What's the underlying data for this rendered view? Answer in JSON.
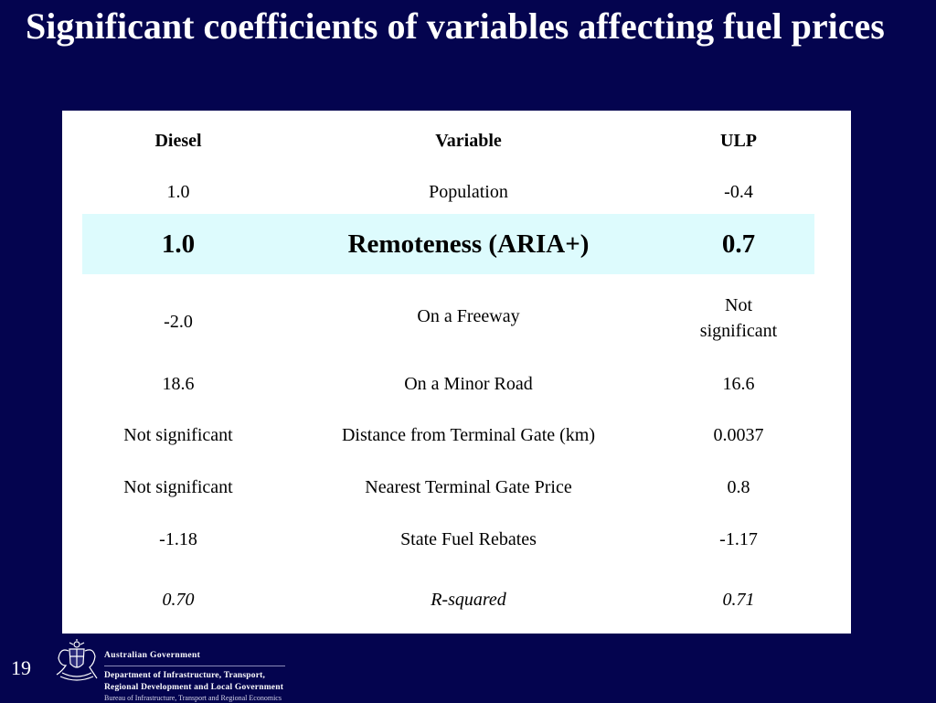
{
  "slide": {
    "title": "Significant coefficients of variables affecting fuel prices",
    "page_number": "19"
  },
  "table": {
    "headers": {
      "diesel": "Diesel",
      "variable": "Variable",
      "ulp": "ULP"
    },
    "rows": [
      {
        "diesel": "1.0",
        "variable": "Population",
        "ulp": "-0.4"
      },
      {
        "diesel": "1.0",
        "variable": "Remoteness (ARIA+)",
        "ulp": "0.7"
      },
      {
        "diesel": "-2.0",
        "variable": "On a Freeway",
        "ulp": "Not significant"
      },
      {
        "diesel": "18.6",
        "variable": "On a Minor Road",
        "ulp": "16.6"
      },
      {
        "diesel": "Not significant",
        "variable": "Distance from Terminal Gate (km)",
        "ulp": "0.0037"
      },
      {
        "diesel": "Not significant",
        "variable": "Nearest Terminal Gate Price",
        "ulp": "0.8"
      },
      {
        "diesel": "-1.18",
        "variable": "State Fuel Rebates",
        "ulp": "-1.17"
      },
      {
        "diesel": "0.70",
        "variable": "R-squared",
        "ulp": "0.71"
      }
    ],
    "highlight_color": "#ddfbfd"
  },
  "footer": {
    "crest_icon": "coat-of-arms-icon",
    "gov_name": "Australian Government",
    "department_line1": "Department of Infrastructure, Transport,",
    "department_line2": "Regional Development and Local Government",
    "bureau": "Bureau of Infrastructure, Transport and Regional Economics"
  },
  "colors": {
    "background": "#04044f",
    "panel": "#ffffff"
  }
}
